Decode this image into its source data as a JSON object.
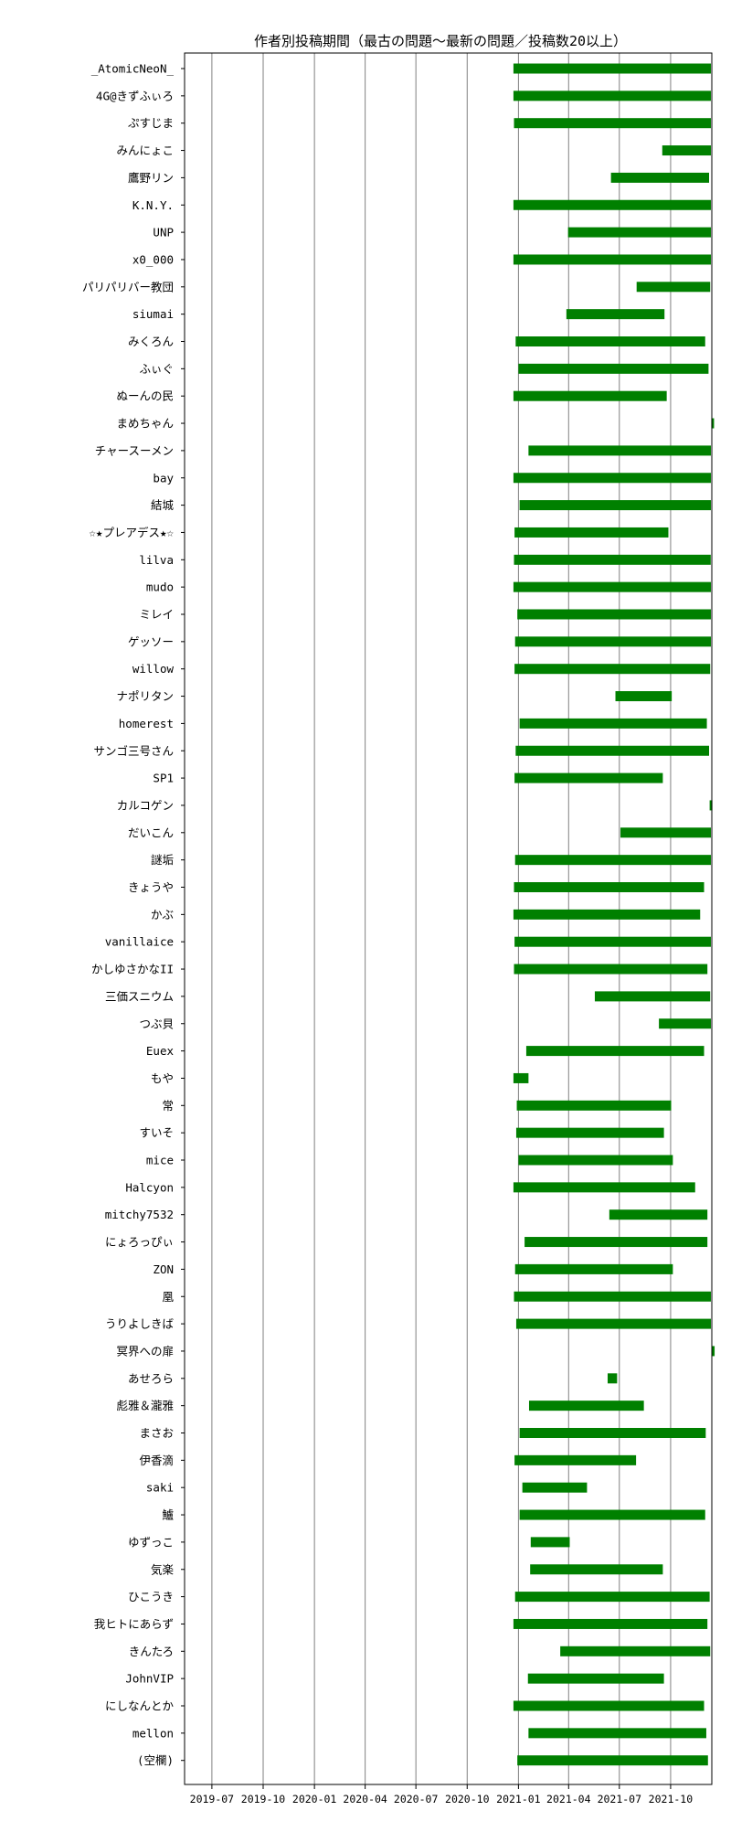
{
  "chart_data": {
    "type": "gantt",
    "title": "作者別投稿期間（最古の問題～最新の問題／投稿数20以上）",
    "xlabel": "",
    "ylabel": "",
    "x_range": [
      "2019-05",
      "2021-12"
    ],
    "x_ticks": [
      "2019-07",
      "2019-10",
      "2020-01",
      "2020-04",
      "2020-07",
      "2020-10",
      "2021-01",
      "2021-04",
      "2021-07",
      "2021-10"
    ],
    "grid": "vertical",
    "bar_color": "#008000",
    "rows": [
      {
        "label": "_AtomicNeoN_",
        "start": "2020-12-23",
        "end": "2021-12-15"
      },
      {
        "label": "4G@きずふぃろ",
        "start": "2020-12-23",
        "end": "2021-12-16"
      },
      {
        "label": "ぷすじま",
        "start": "2020-12-24",
        "end": "2021-12-15"
      },
      {
        "label": "みんにょこ",
        "start": "2021-09-16",
        "end": "2021-12-17"
      },
      {
        "label": "鷹野リン",
        "start": "2021-06-16",
        "end": "2021-12-09"
      },
      {
        "label": "K.N.Y.",
        "start": "2020-12-23",
        "end": "2021-12-15"
      },
      {
        "label": "UNP",
        "start": "2021-03-31",
        "end": "2021-12-15"
      },
      {
        "label": "x0_000",
        "start": "2020-12-23",
        "end": "2021-12-14"
      },
      {
        "label": "パリパリバー教団",
        "start": "2021-08-01",
        "end": "2021-12-11"
      },
      {
        "label": "siumai",
        "start": "2021-03-28",
        "end": "2021-09-20"
      },
      {
        "label": "みくろん",
        "start": "2020-12-27",
        "end": "2021-12-02"
      },
      {
        "label": "ふぃぐ",
        "start": "2021-01-01",
        "end": "2021-12-08"
      },
      {
        "label": "ぬーんの民",
        "start": "2020-12-23",
        "end": "2021-09-24"
      },
      {
        "label": "まめちゃん",
        "start": "2021-12-13",
        "end": "2021-12-16"
      },
      {
        "label": "チャースーメン",
        "start": "2021-01-19",
        "end": "2021-12-13"
      },
      {
        "label": "bay",
        "start": "2020-12-23",
        "end": "2021-12-13"
      },
      {
        "label": "結城",
        "start": "2021-01-03",
        "end": "2021-12-14"
      },
      {
        "label": "☆★プレアデス★☆",
        "start": "2020-12-25",
        "end": "2021-09-27"
      },
      {
        "label": "lilva",
        "start": "2020-12-24",
        "end": "2021-12-12"
      },
      {
        "label": "mudo",
        "start": "2020-12-23",
        "end": "2021-12-15"
      },
      {
        "label": "ミレイ",
        "start": "2020-12-30",
        "end": "2021-12-16"
      },
      {
        "label": "ゲッソー",
        "start": "2020-12-26",
        "end": "2021-12-16"
      },
      {
        "label": "willow",
        "start": "2020-12-25",
        "end": "2021-12-11"
      },
      {
        "label": "ナポリタン",
        "start": "2021-06-24",
        "end": "2021-10-03"
      },
      {
        "label": "homerest",
        "start": "2021-01-03",
        "end": "2021-12-05"
      },
      {
        "label": "サンゴ三号さん",
        "start": "2020-12-27",
        "end": "2021-12-09"
      },
      {
        "label": "SP1",
        "start": "2020-12-25",
        "end": "2021-09-17"
      },
      {
        "label": "カルコゲン",
        "start": "2021-12-10",
        "end": "2021-12-15"
      },
      {
        "label": "だいこん",
        "start": "2021-07-03",
        "end": "2021-12-16"
      },
      {
        "label": "謎垢",
        "start": "2020-12-26",
        "end": "2021-12-14"
      },
      {
        "label": "きょうや",
        "start": "2020-12-24",
        "end": "2021-11-30"
      },
      {
        "label": "かぶ",
        "start": "2020-12-23",
        "end": "2021-11-23"
      },
      {
        "label": "vanillaice",
        "start": "2020-12-25",
        "end": "2021-12-15"
      },
      {
        "label": "かしゆさかなII",
        "start": "2020-12-24",
        "end": "2021-12-06"
      },
      {
        "label": "三価スニウム",
        "start": "2021-05-18",
        "end": "2021-12-11"
      },
      {
        "label": "つぶ貝",
        "start": "2021-09-10",
        "end": "2021-12-15"
      },
      {
        "label": "Euex",
        "start": "2021-01-15",
        "end": "2021-11-30"
      },
      {
        "label": "もや",
        "start": "2020-12-23",
        "end": "2021-01-19"
      },
      {
        "label": "常",
        "start": "2020-12-29",
        "end": "2021-10-02"
      },
      {
        "label": "すいそ",
        "start": "2020-12-28",
        "end": "2021-09-19"
      },
      {
        "label": "mice",
        "start": "2021-01-01",
        "end": "2021-10-05"
      },
      {
        "label": "Halcyon",
        "start": "2020-12-23",
        "end": "2021-11-14"
      },
      {
        "label": "mitchy7532",
        "start": "2021-06-13",
        "end": "2021-12-06"
      },
      {
        "label": "にょろっぴぃ",
        "start": "2021-01-12",
        "end": "2021-12-06"
      },
      {
        "label": "ZON",
        "start": "2020-12-26",
        "end": "2021-10-05"
      },
      {
        "label": "凰",
        "start": "2020-12-24",
        "end": "2021-12-15"
      },
      {
        "label": "うりよしきば",
        "start": "2020-12-28",
        "end": "2021-12-15"
      },
      {
        "label": "冥界への扉",
        "start": "2021-12-14",
        "end": "2021-12-16"
      },
      {
        "label": "あせろら",
        "start": "2021-06-10",
        "end": "2021-06-27"
      },
      {
        "label": "彪雅＆瀧雅",
        "start": "2021-01-20",
        "end": "2021-08-14"
      },
      {
        "label": "まさお",
        "start": "2021-01-03",
        "end": "2021-12-03"
      },
      {
        "label": "伊香滴",
        "start": "2020-12-25",
        "end": "2021-07-31"
      },
      {
        "label": "saki",
        "start": "2021-01-08",
        "end": "2021-05-04"
      },
      {
        "label": "鱸",
        "start": "2021-01-03",
        "end": "2021-12-02"
      },
      {
        "label": "ゆずっこ",
        "start": "2021-01-23",
        "end": "2021-04-03"
      },
      {
        "label": "気楽",
        "start": "2021-01-22",
        "end": "2021-09-17"
      },
      {
        "label": "ひこうき",
        "start": "2020-12-26",
        "end": "2021-12-10"
      },
      {
        "label": "我ヒトにあらず",
        "start": "2020-12-23",
        "end": "2021-12-06"
      },
      {
        "label": "きんたろ",
        "start": "2021-03-17",
        "end": "2021-12-11"
      },
      {
        "label": "JohnVIP",
        "start": "2021-01-18",
        "end": "2021-09-19"
      },
      {
        "label": "にしなんとか",
        "start": "2020-12-23",
        "end": "2021-11-30"
      },
      {
        "label": "mellon",
        "start": "2021-01-19",
        "end": "2021-12-04"
      },
      {
        "label": "(空欄)",
        "start": "2020-12-30",
        "end": "2021-12-07"
      }
    ]
  }
}
